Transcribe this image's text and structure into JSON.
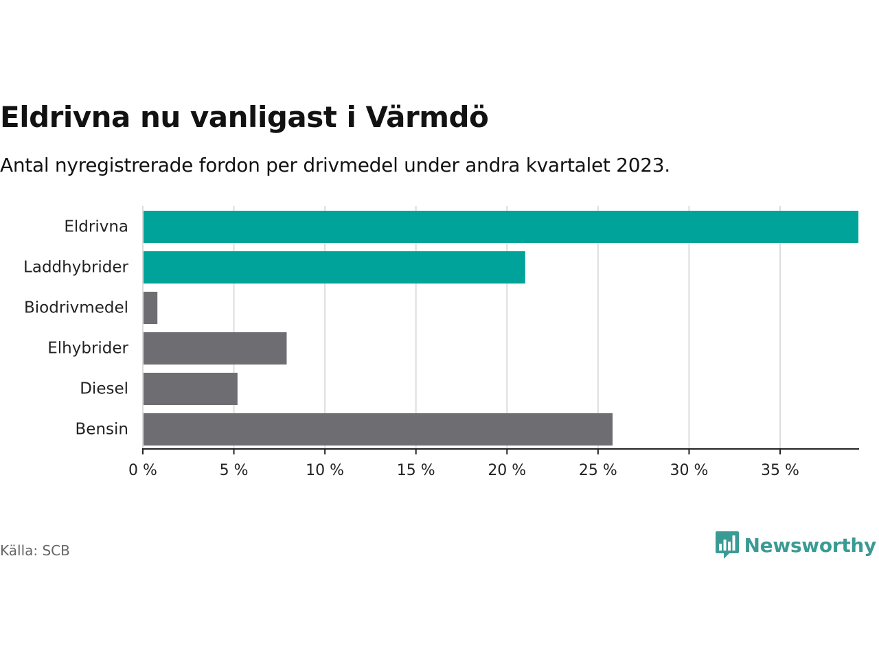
{
  "title": "Eldrivna nu vanligast i Värmdö",
  "subtitle": "Antal nyregistrerade fordon per drivmedel under andra kvartalet 2023.",
  "source": "Källa: SCB",
  "brand": {
    "name": "Newsworthy",
    "icon": "newsworthy-logo-icon"
  },
  "colors": {
    "highlight": "#00a39a",
    "default": "#6e6d72",
    "grid": "#dddddd",
    "axis": "#222222",
    "brand": "#3a9b94"
  },
  "chart_data": {
    "type": "bar",
    "orientation": "horizontal",
    "categories": [
      "Eldrivna",
      "Laddhybrider",
      "Biodrivmedel",
      "Elhybrider",
      "Diesel",
      "Bensin"
    ],
    "values": [
      39.3,
      21.0,
      0.8,
      7.9,
      5.2,
      25.8
    ],
    "highlighted": [
      true,
      true,
      false,
      false,
      false,
      false
    ],
    "xlim": [
      0,
      39.3
    ],
    "xticks": [
      0,
      5,
      10,
      15,
      20,
      25,
      30,
      35
    ],
    "xtick_labels": [
      "0 %",
      "5 %",
      "10 %",
      "15 %",
      "20 %",
      "25 %",
      "30 %",
      "35 %"
    ],
    "xlabel": "",
    "ylabel": "",
    "grid": true
  }
}
